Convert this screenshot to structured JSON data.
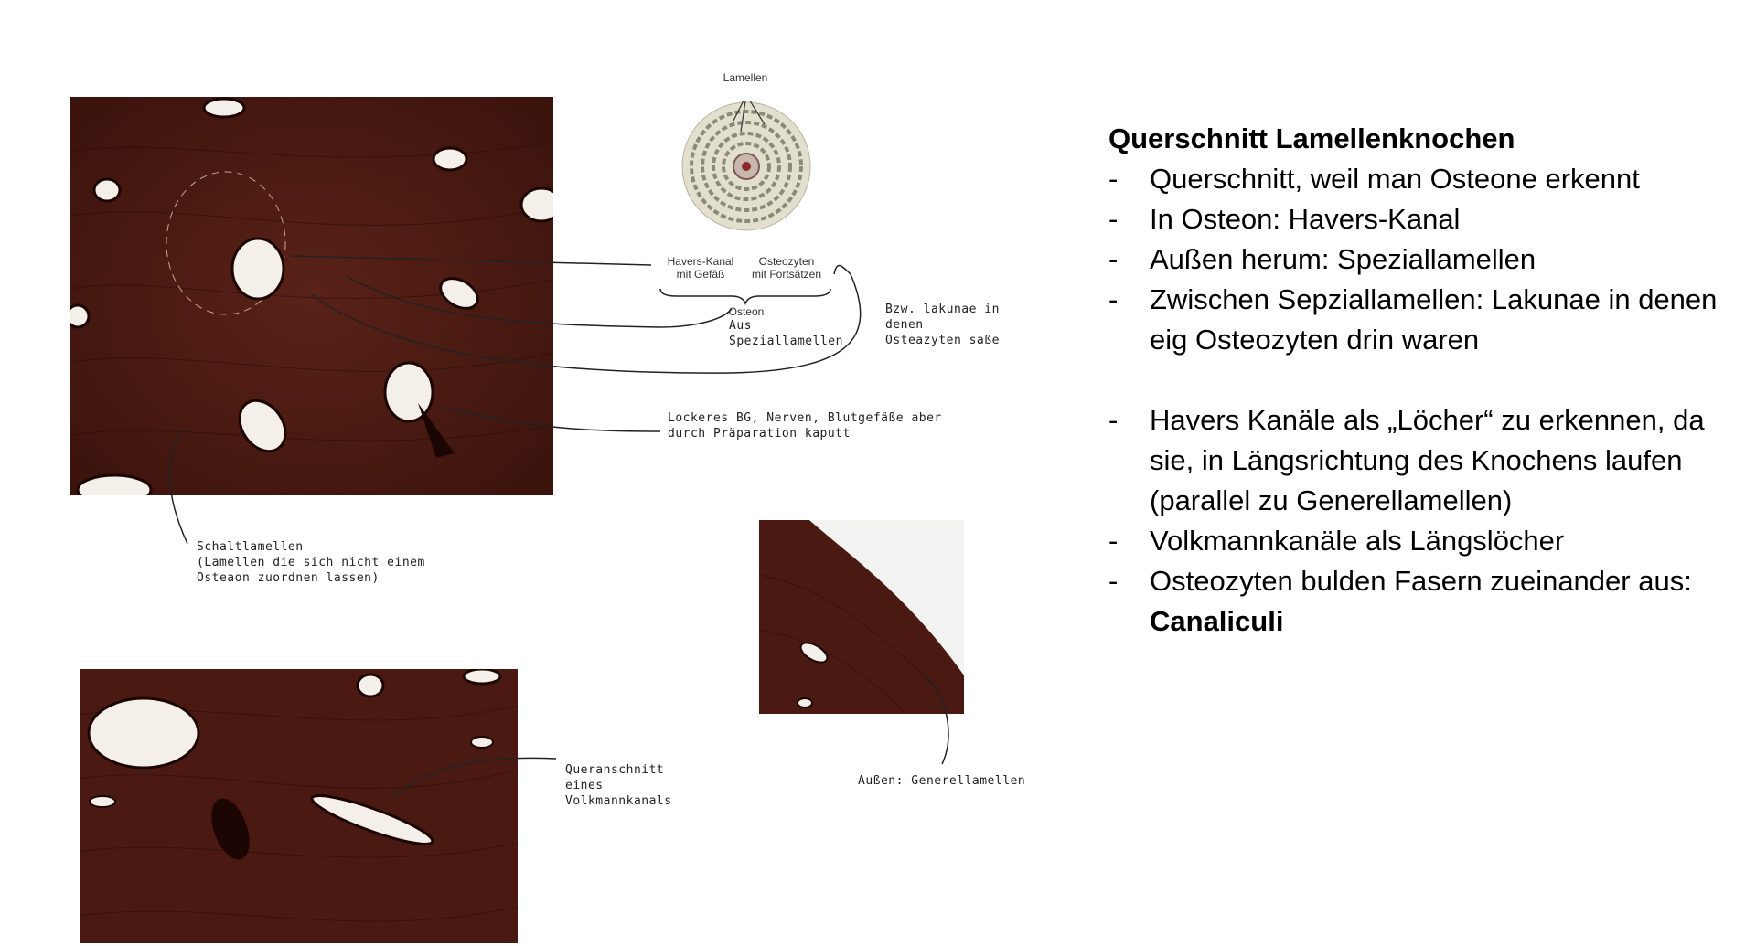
{
  "diagram": {
    "lamellen_label": "Lamellen",
    "havers_label": "Havers-Kanal\nmit Gefäß",
    "osteozyten_label": "Osteozyten\nmit Fortsätzen",
    "osteon_label": "Osteon"
  },
  "annotations": {
    "aus_speziallamellen": "Aus\nSpeziallamellen",
    "lakunae": "Bzw. lakunae in\ndenen\nOsteazyten saße",
    "lockeres_bg": "Lockeres BG, Nerven, Blutgefäße aber\ndurch Präparation kaputt",
    "schaltlamellen": "Schaltlamellen\n(Lamellen die sich nicht einem\nOsteaon zuordnen lassen)",
    "volkmann_quer": "Queranschnitt\neines\nVolkmannkanals",
    "generellamellen": "Außen: Generellamellen"
  },
  "notes": {
    "title": "Querschnitt Lamellenknochen",
    "bullets": [
      "Querschnitt, weil  man Osteone erkennt",
      "In Osteon: Havers-Kanal",
      "Außen herum: Speziallamellen",
      "Zwischen Sepziallamellen: Lakunae in denen eig Osteozyten drin waren"
    ],
    "bullets2": [
      "Havers Kanäle als „Löcher“ zu erkennen, da sie, in Längsrichtung des Knochens laufen (parallel zu Generellamellen)",
      "Volkmannkanäle als Längslöcher"
    ],
    "last_bullet_text": "Osteozyten bulden Fasern zueinander aus:",
    "last_bullet_bold": "Canaliculi",
    "dash": "-"
  },
  "colors": {
    "tissue": "#4a1a12",
    "tissue_dark": "#2e0d08",
    "lumen": "#f4efe8"
  }
}
